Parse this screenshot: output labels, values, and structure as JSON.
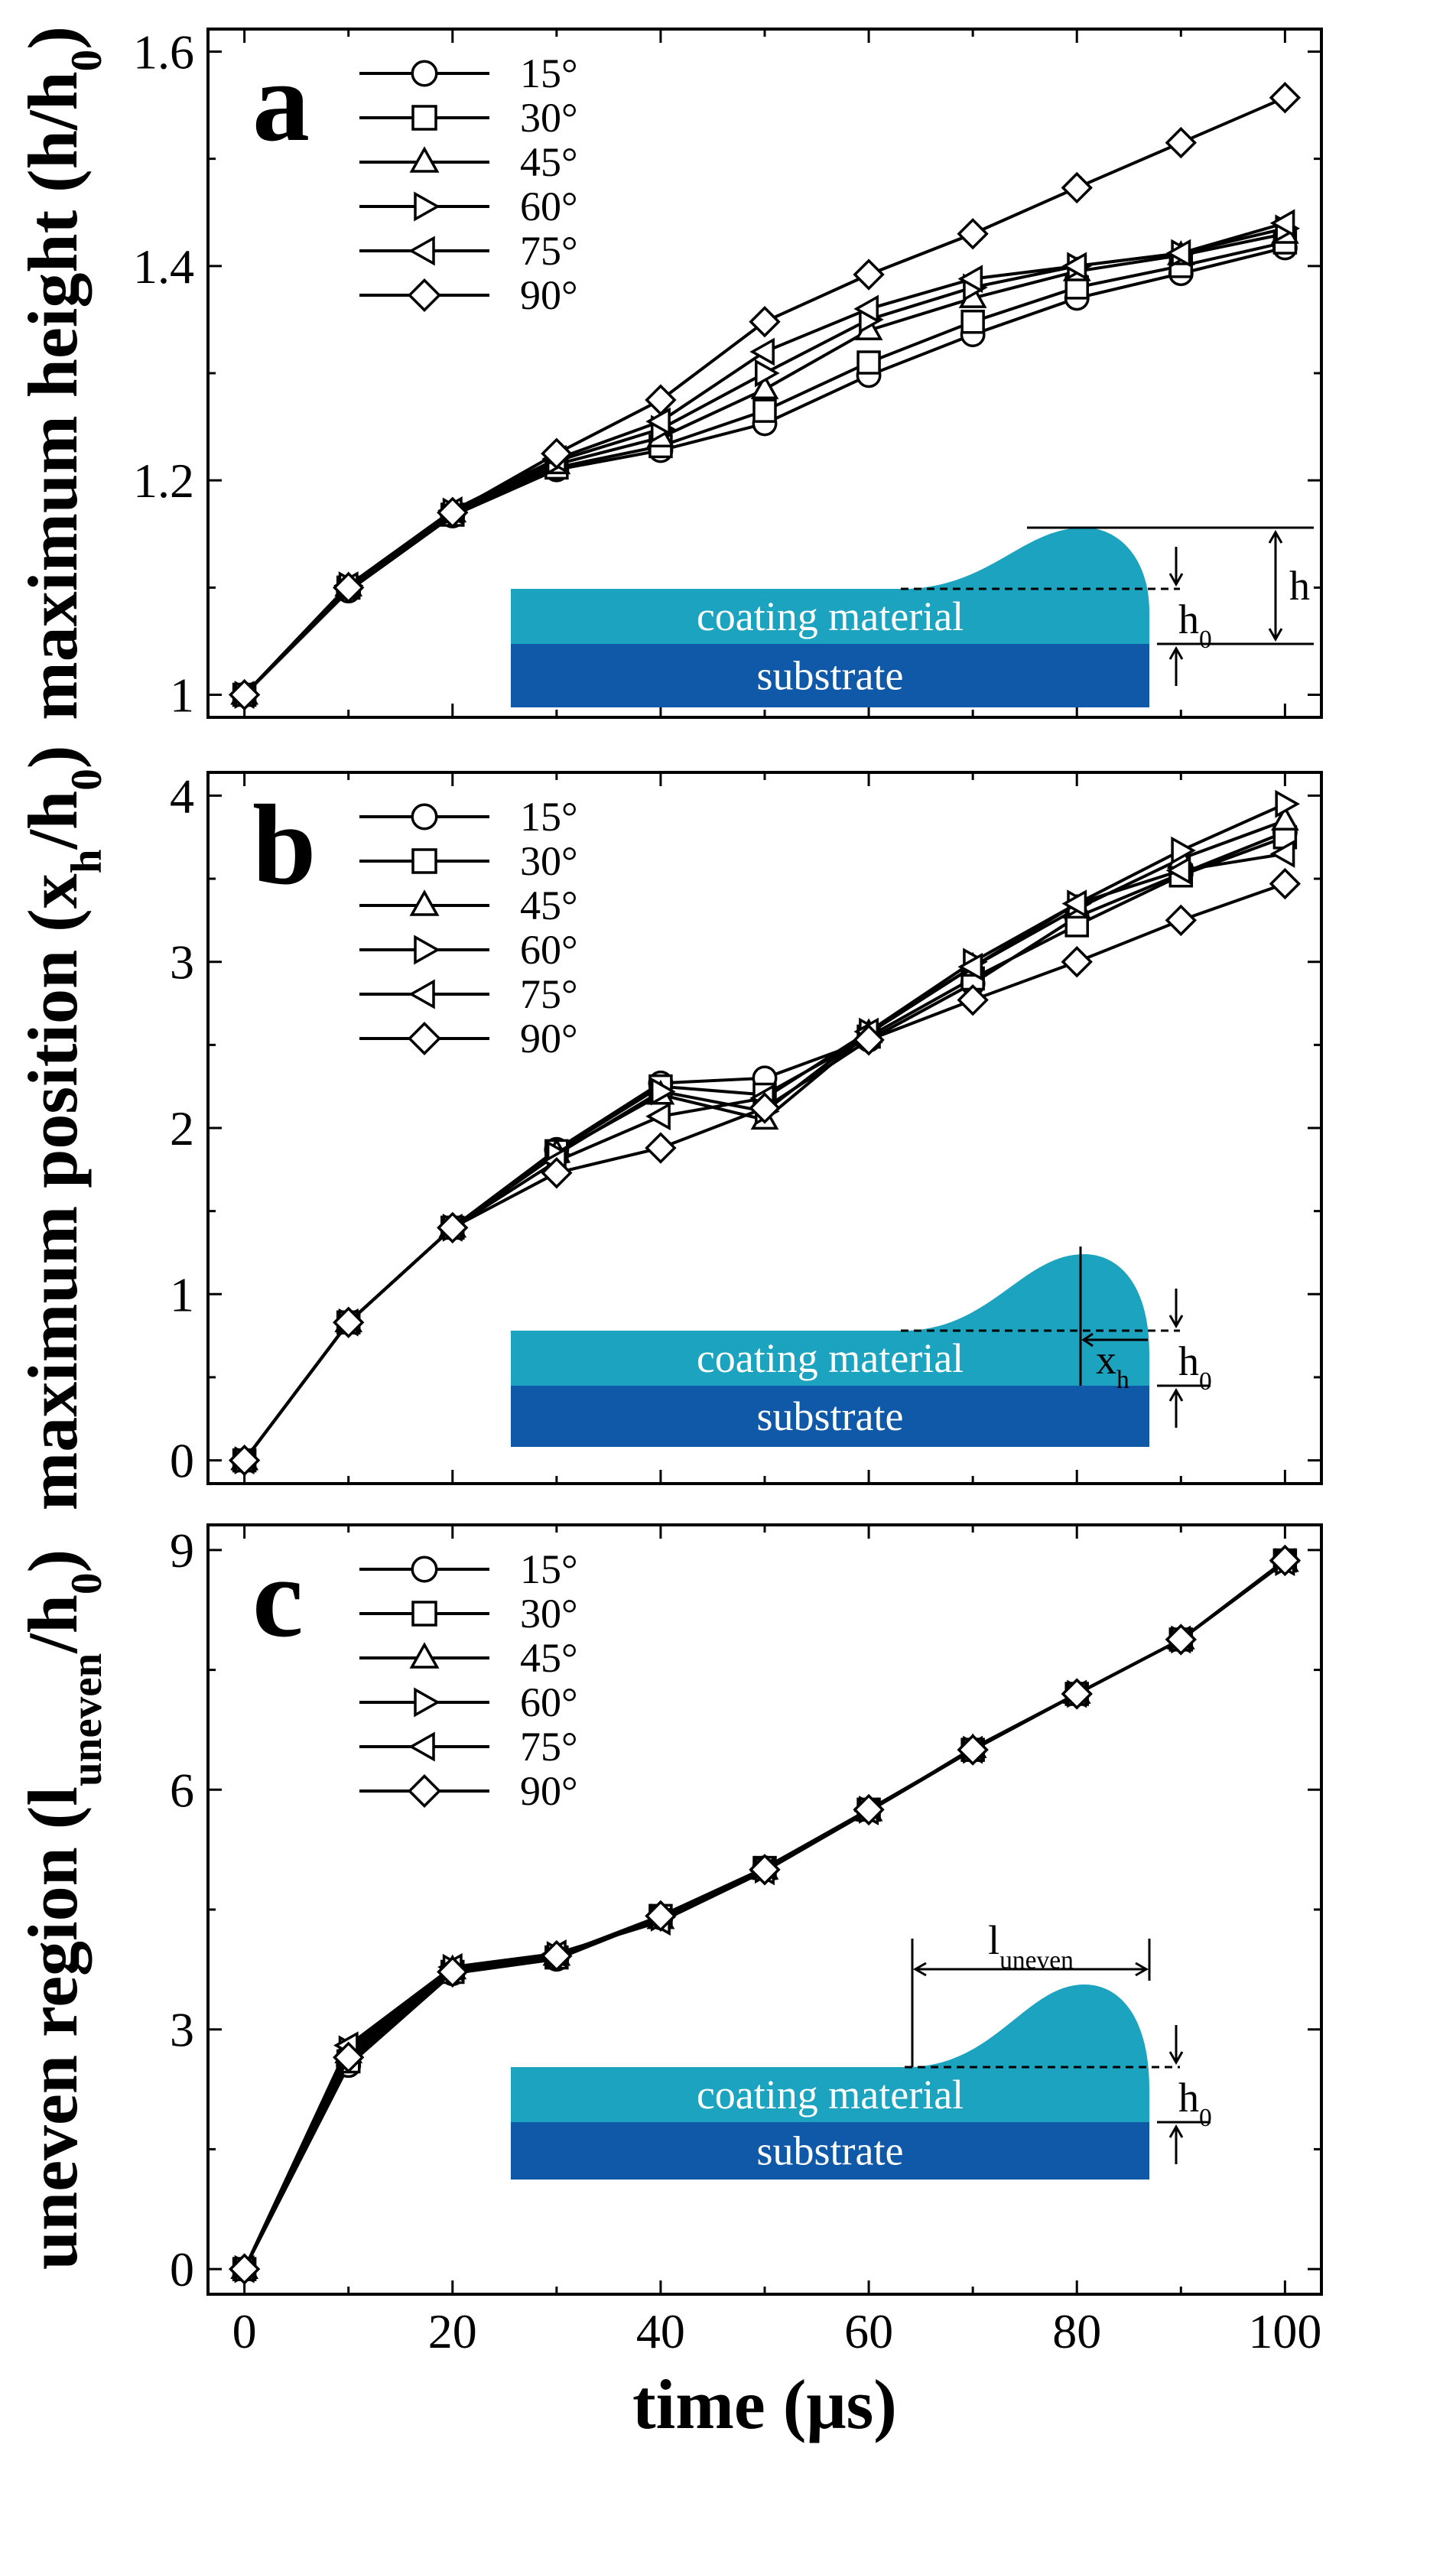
{
  "chart_data": [
    {
      "type": "line",
      "panel": "a",
      "ylabel": "maximum height (h/h0)",
      "xlabel": "",
      "xlim": [
        0,
        100
      ],
      "ylim": [
        1.0,
        1.6
      ],
      "xticks": [
        "0",
        "20",
        "40",
        "60",
        "80",
        "100"
      ],
      "yticks": [
        "1",
        "1.2",
        "1.4",
        "1.6"
      ],
      "x": [
        0,
        10,
        20,
        30,
        40,
        50,
        60,
        70,
        80,
        90,
        100
      ],
      "series": [
        {
          "name": "15°",
          "marker": "circle",
          "values": [
            1.0,
            1.097,
            1.167,
            1.21,
            1.228,
            1.253,
            1.298,
            1.336,
            1.37,
            1.393,
            1.417
          ]
        },
        {
          "name": "30°",
          "marker": "square",
          "values": [
            1.0,
            1.1,
            1.168,
            1.212,
            1.232,
            1.265,
            1.31,
            1.348,
            1.38,
            1.4,
            1.422
          ]
        },
        {
          "name": "45°",
          "marker": "triangle-up",
          "values": [
            1.0,
            1.101,
            1.17,
            1.215,
            1.24,
            1.285,
            1.34,
            1.37,
            1.395,
            1.41,
            1.43
          ]
        },
        {
          "name": "60°",
          "marker": "triangle-right",
          "values": [
            1.0,
            1.102,
            1.171,
            1.218,
            1.248,
            1.3,
            1.35,
            1.38,
            1.4,
            1.412,
            1.435
          ]
        },
        {
          "name": "75°",
          "marker": "triangle-left",
          "values": [
            1.0,
            1.102,
            1.172,
            1.22,
            1.255,
            1.32,
            1.36,
            1.388,
            1.4,
            1.412,
            1.44
          ]
        },
        {
          "name": "90°",
          "marker": "diamond",
          "values": [
            1.0,
            1.1,
            1.17,
            1.225,
            1.275,
            1.348,
            1.392,
            1.43,
            1.473,
            1.515,
            1.557
          ]
        }
      ],
      "inset": {
        "coating": "coating material",
        "substrate": "substrate",
        "dim_label": "h",
        "ref_label": "h0"
      }
    },
    {
      "type": "line",
      "panel": "b",
      "ylabel": "maximum position (xh/h0)",
      "xlabel": "",
      "xlim": [
        0,
        100
      ],
      "ylim": [
        0,
        4
      ],
      "xticks": [
        "0",
        "20",
        "40",
        "60",
        "80",
        "100"
      ],
      "yticks": [
        "0",
        "1",
        "2",
        "3",
        "4"
      ],
      "x": [
        0,
        10,
        20,
        30,
        40,
        50,
        60,
        70,
        80,
        90,
        100
      ],
      "series": [
        {
          "name": "15°",
          "marker": "circle",
          "values": [
            0.0,
            0.83,
            1.4,
            1.87,
            2.27,
            2.3,
            2.53,
            2.87,
            3.27,
            3.53,
            3.78
          ]
        },
        {
          "name": "30°",
          "marker": "square",
          "values": [
            0.0,
            0.83,
            1.4,
            1.86,
            2.25,
            2.2,
            2.55,
            2.9,
            3.22,
            3.52,
            3.75
          ]
        },
        {
          "name": "45°",
          "marker": "triangle-up",
          "values": [
            0.0,
            0.83,
            1.4,
            1.85,
            2.2,
            2.05,
            2.57,
            2.97,
            3.32,
            3.62,
            3.85
          ]
        },
        {
          "name": "60°",
          "marker": "triangle-right",
          "values": [
            0.0,
            0.83,
            1.4,
            1.84,
            2.22,
            2.1,
            2.58,
            3.0,
            3.35,
            3.67,
            3.95
          ]
        },
        {
          "name": "75°",
          "marker": "triangle-left",
          "values": [
            0.0,
            0.83,
            1.4,
            1.8,
            2.07,
            2.18,
            2.58,
            2.97,
            3.35,
            3.55,
            3.65
          ]
        },
        {
          "name": "90°",
          "marker": "diamond",
          "values": [
            0.0,
            0.83,
            1.4,
            1.73,
            1.88,
            2.12,
            2.53,
            2.77,
            3.0,
            3.25,
            3.47
          ]
        }
      ],
      "inset": {
        "coating": "coating material",
        "substrate": "substrate",
        "dim_label": "xh",
        "ref_label": "h0"
      }
    },
    {
      "type": "line",
      "panel": "c",
      "ylabel": "uneven region (luneven/h0)",
      "xlabel": "time (μs)",
      "xlim": [
        0,
        100
      ],
      "ylim": [
        0,
        9
      ],
      "xticks": [
        "0",
        "20",
        "40",
        "60",
        "80",
        "100"
      ],
      "yticks": [
        "0",
        "3",
        "6",
        "9"
      ],
      "x": [
        0,
        10,
        20,
        30,
        40,
        50,
        60,
        70,
        80,
        90,
        100
      ],
      "series": [
        {
          "name": "15°",
          "marker": "circle",
          "values": [
            0.0,
            2.55,
            3.7,
            3.88,
            4.4,
            5.02,
            5.75,
            6.5,
            7.2,
            7.88,
            8.87
          ]
        },
        {
          "name": "30°",
          "marker": "square",
          "values": [
            0.0,
            2.6,
            3.72,
            3.9,
            4.42,
            5.02,
            5.75,
            6.5,
            7.2,
            7.88,
            8.87
          ]
        },
        {
          "name": "45°",
          "marker": "triangle-up",
          "values": [
            0.0,
            2.7,
            3.75,
            3.92,
            4.38,
            5.0,
            5.73,
            6.52,
            7.2,
            7.88,
            8.85
          ]
        },
        {
          "name": "60°",
          "marker": "triangle-right",
          "values": [
            0.0,
            2.75,
            3.77,
            3.93,
            4.4,
            5.0,
            5.75,
            6.5,
            7.2,
            7.88,
            8.85
          ]
        },
        {
          "name": "75°",
          "marker": "triangle-left",
          "values": [
            0.0,
            2.8,
            3.78,
            3.95,
            4.35,
            4.98,
            5.73,
            6.5,
            7.2,
            7.88,
            8.85
          ]
        },
        {
          "name": "90°",
          "marker": "diamond",
          "values": [
            0.0,
            2.65,
            3.72,
            3.92,
            4.42,
            5.0,
            5.75,
            6.5,
            7.2,
            7.88,
            8.87
          ]
        }
      ],
      "inset": {
        "coating": "coating material",
        "substrate": "substrate",
        "dim_label": "luneven",
        "ref_label": "h0"
      }
    }
  ],
  "colors": {
    "coating": "#1ba3c0",
    "substrate": "#0f59a8",
    "axis": "#000000",
    "marker_fill": "#ffffff"
  }
}
